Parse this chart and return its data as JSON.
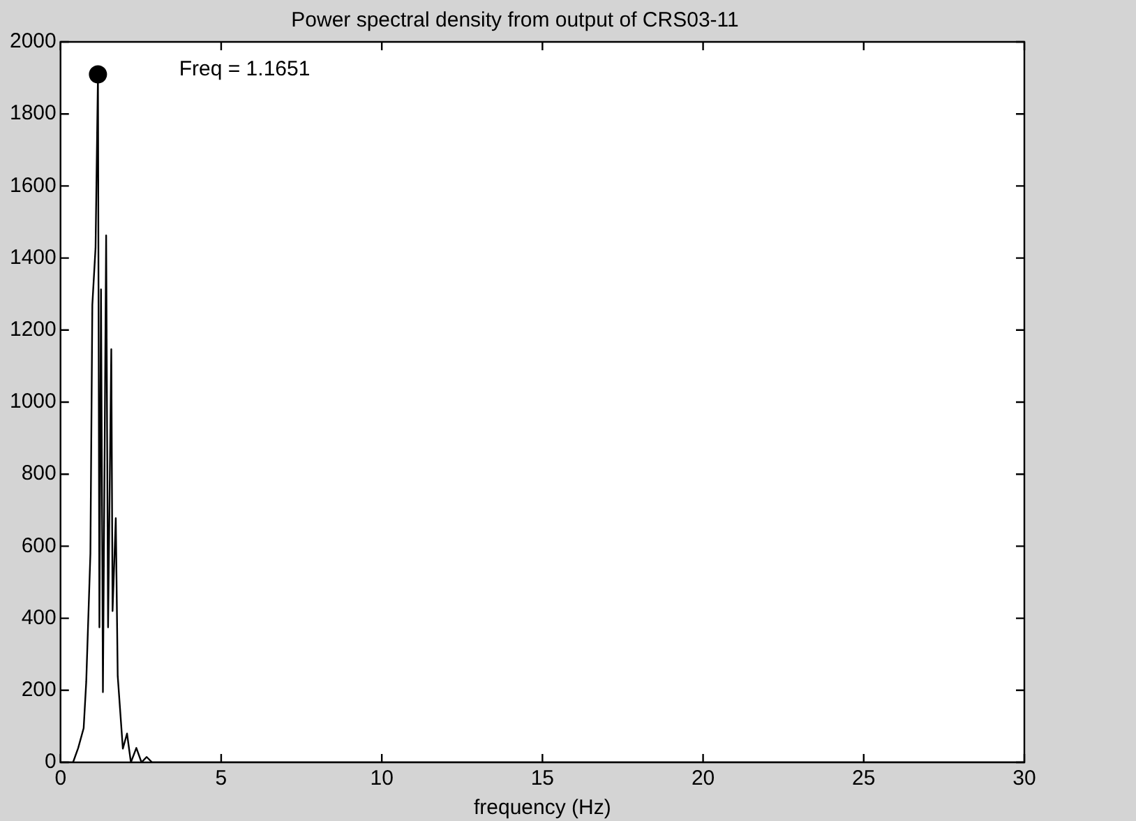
{
  "chart_data": {
    "type": "line",
    "title": "Power spectral density from output of CRS03-11",
    "xlabel": "frequency (Hz)",
    "xlim": [
      0,
      30
    ],
    "xticks": [
      0,
      5,
      10,
      15,
      20,
      25,
      30
    ],
    "ylim": [
      0,
      2000
    ],
    "yticks": [
      0,
      200,
      400,
      600,
      800,
      1000,
      1200,
      1400,
      1600,
      1800,
      2000
    ],
    "grid": false,
    "legend": false,
    "annotations": [
      "Freq = 1.1651"
    ],
    "series": [
      {
        "color": "#000000",
        "marker": "none",
        "x": [
          0,
          0.39,
          0.55,
          0.72,
          0.8,
          0.93,
          0.99,
          1.09,
          1.1651,
          1.21,
          1.26,
          1.32,
          1.42,
          1.48,
          1.58,
          1.62,
          1.72,
          1.78,
          1.94,
          2.07,
          2.19,
          2.36,
          2.52,
          2.68,
          2.85,
          30
        ],
        "values": [
          0,
          0,
          40,
          95,
          223,
          580,
          1270,
          1428,
          1910,
          375,
          1313,
          195,
          1463,
          375,
          1147,
          420,
          678,
          240,
          38,
          80,
          0,
          40,
          0,
          15,
          0,
          0
        ]
      },
      {
        "type": "scatter",
        "color": "#000000",
        "marker": "circle",
        "x": [
          1.1651
        ],
        "values": [
          1910
        ]
      }
    ]
  }
}
